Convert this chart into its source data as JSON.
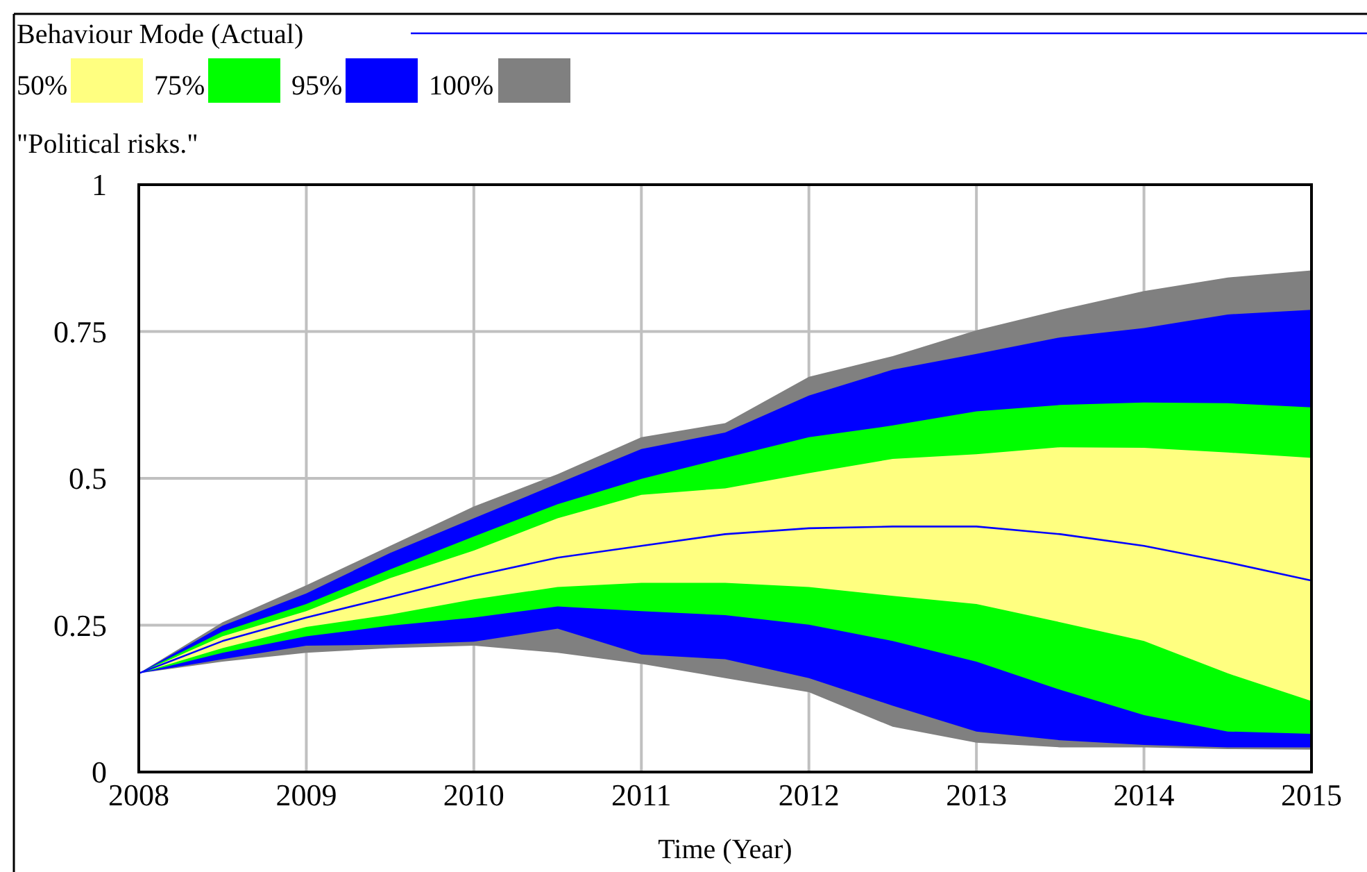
{
  "chart_data": {
    "type": "area",
    "title": "\"Political risks.\"",
    "xlabel": "Time (Year)",
    "legend": "top",
    "grid": true,
    "x": [
      2008,
      2008.5,
      2009,
      2009.5,
      2010,
      2010.5,
      2011,
      2011.5,
      2012,
      2012.5,
      2013,
      2013.5,
      2014,
      2014.5,
      2015
    ],
    "xlim": [
      2008,
      2015
    ],
    "xticks": [
      2008,
      2009,
      2010,
      2011,
      2012,
      2013,
      2014,
      2015
    ],
    "ylim": [
      0,
      1
    ],
    "yticks": [
      0,
      0.25,
      0.5,
      0.75,
      1
    ],
    "series": [
      {
        "name": "Behaviour Mode (Actual)",
        "type": "line",
        "color": "#0000ff",
        "values": [
          0.168,
          0.223,
          0.263,
          0.298,
          0.334,
          0.365,
          0.385,
          0.405,
          0.415,
          0.418,
          0.418,
          0.405,
          0.385,
          0.357,
          0.326
        ]
      },
      {
        "name": "50%",
        "color": "#ffff80",
        "values": [
          null,
          null,
          null,
          null,
          null,
          null,
          null,
          null,
          null,
          null,
          null,
          null,
          null,
          null,
          null
        ],
        "lower": [
          0.168,
          0.211,
          0.247,
          0.268,
          0.294,
          0.315,
          0.322,
          0.322,
          0.315,
          0.3,
          0.286,
          0.255,
          0.223,
          0.168,
          0.121
        ],
        "upper": [
          0.168,
          0.231,
          0.274,
          0.33,
          0.377,
          0.432,
          0.472,
          0.483,
          0.509,
          0.533,
          0.541,
          0.553,
          0.552,
          0.544,
          0.535
        ]
      },
      {
        "name": "75%",
        "color": "#00ff00",
        "values": [
          null,
          null,
          null,
          null,
          null,
          null,
          null,
          null,
          null,
          null,
          null,
          null,
          null,
          null,
          null
        ],
        "lower": [
          0.168,
          0.203,
          0.231,
          0.249,
          0.263,
          0.282,
          0.274,
          0.267,
          0.251,
          0.223,
          0.188,
          0.14,
          0.097,
          0.069,
          0.065
        ],
        "upper": [
          0.168,
          0.239,
          0.286,
          0.345,
          0.401,
          0.456,
          0.499,
          0.535,
          0.57,
          0.59,
          0.614,
          0.625,
          0.629,
          0.628,
          0.621
        ]
      },
      {
        "name": "95%",
        "color": "#0000ff",
        "values": [
          null,
          null,
          null,
          null,
          null,
          null,
          null,
          null,
          null,
          null,
          null,
          null,
          null,
          null,
          null
        ],
        "lower": [
          0.168,
          0.192,
          0.215,
          0.217,
          0.222,
          0.244,
          0.2,
          0.192,
          0.16,
          0.113,
          0.069,
          0.054,
          0.046,
          0.042,
          0.042
        ],
        "upper": [
          0.168,
          0.249,
          0.304,
          0.373,
          0.432,
          0.491,
          0.55,
          0.578,
          0.641,
          0.685,
          0.712,
          0.74,
          0.756,
          0.779,
          0.787
        ]
      },
      {
        "name": "100%",
        "color": "#808080",
        "values": [
          null,
          null,
          null,
          null,
          null,
          null,
          null,
          null,
          null,
          null,
          null,
          null,
          null,
          null,
          null
        ],
        "lower": [
          0.168,
          0.188,
          0.203,
          0.211,
          0.215,
          0.203,
          0.184,
          0.16,
          0.136,
          0.077,
          0.05,
          0.042,
          0.042,
          0.039,
          0.038
        ],
        "upper": [
          0.168,
          0.255,
          0.318,
          0.385,
          0.452,
          0.507,
          0.57,
          0.594,
          0.673,
          0.708,
          0.752,
          0.787,
          0.819,
          0.842,
          0.854
        ]
      }
    ]
  }
}
